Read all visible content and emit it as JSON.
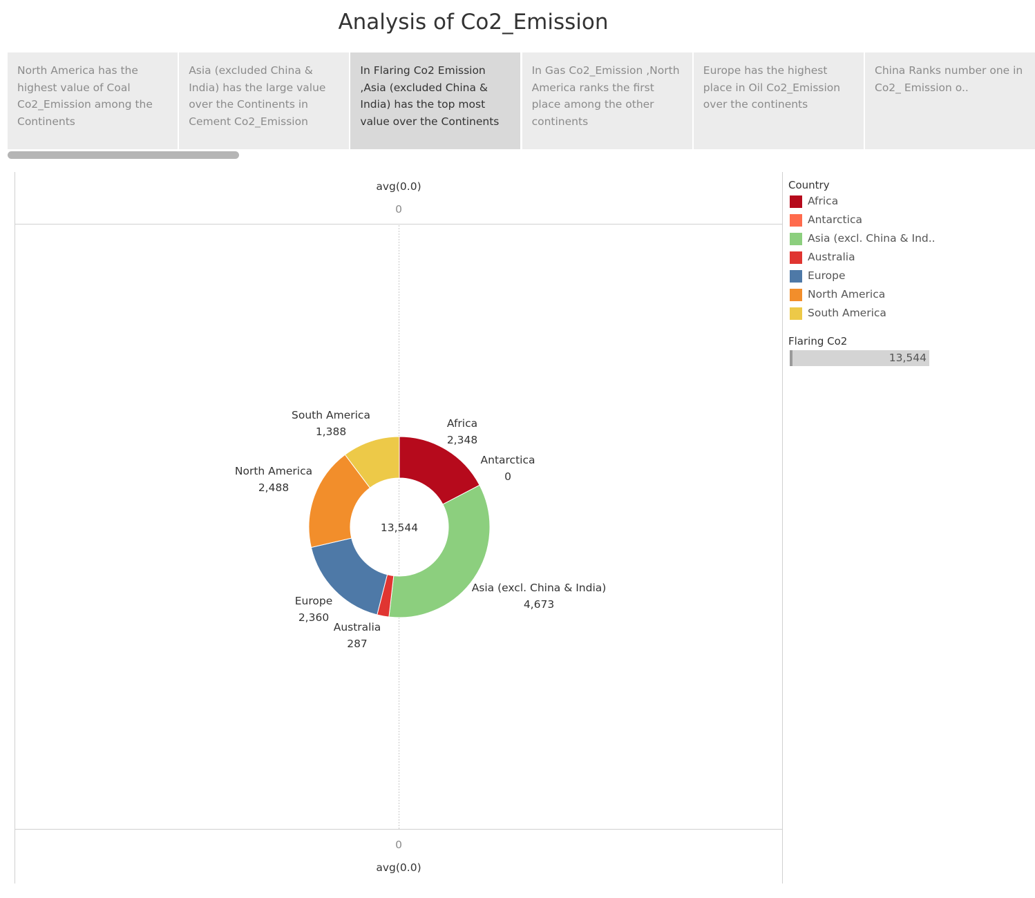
{
  "title": "Analysis of Co2_Emission",
  "cards": [
    {
      "text": "North America has the highest value of Coal Co2_Emission among the Continents",
      "active": false
    },
    {
      "text": "Asia (excluded China & India) has the large value over the Continents in  Cement Co2_Emission",
      "active": false
    },
    {
      "text": "In Flaring Co2 Emission ,Asia (excluded China & India) has the top most value over the Continents",
      "active": true
    },
    {
      "text": "In Gas Co2_Emission ,North America  ranks the first place among the other continents",
      "active": false
    },
    {
      "text": "Europe has the highest place in Oil Co2_Emission over the continents",
      "active": false
    },
    {
      "text": "China Ranks number one in Co2_ Emission o..",
      "active": false
    }
  ],
  "axis": {
    "top_title": "avg(0.0)",
    "top_tick": "0",
    "bottom_tick": "0",
    "bottom_title": "avg(0.0)"
  },
  "legend": {
    "title": "Country",
    "items": [
      {
        "name": "Africa",
        "color": "#b60a1c"
      },
      {
        "name": "Antarctica",
        "color": "#ff6b4d"
      },
      {
        "name": "Asia (excl. China & Ind..",
        "color": "#8ccf7e"
      },
      {
        "name": "Australia",
        "color": "#e03531"
      },
      {
        "name": "Europe",
        "color": "#4e79a7"
      },
      {
        "name": "North America",
        "color": "#f28e2b"
      },
      {
        "name": "South America",
        "color": "#edc948"
      }
    ]
  },
  "filter": {
    "title": "Flaring Co2",
    "value": "13,544"
  },
  "chart_data": {
    "type": "pie",
    "donut": true,
    "center_label": "13,544",
    "total": 13544,
    "slices": [
      {
        "label": "Africa",
        "value": 2348,
        "value_label": "2,348",
        "color": "#b60a1c"
      },
      {
        "label": "Antarctica",
        "value": 0,
        "value_label": "0",
        "color": "#ff6b4d"
      },
      {
        "label": "Asia (excl. China & India)",
        "value": 4673,
        "value_label": "4,673",
        "color": "#8ccf7e"
      },
      {
        "label": "Australia",
        "value": 287,
        "value_label": "287",
        "color": "#e03531"
      },
      {
        "label": "Europe",
        "value": 2360,
        "value_label": "2,360",
        "color": "#4e79a7"
      },
      {
        "label": "North America",
        "value": 2488,
        "value_label": "2,488",
        "color": "#f28e2b"
      },
      {
        "label": "South America",
        "value": 1388,
        "value_label": "1,388",
        "color": "#edc948"
      }
    ]
  }
}
